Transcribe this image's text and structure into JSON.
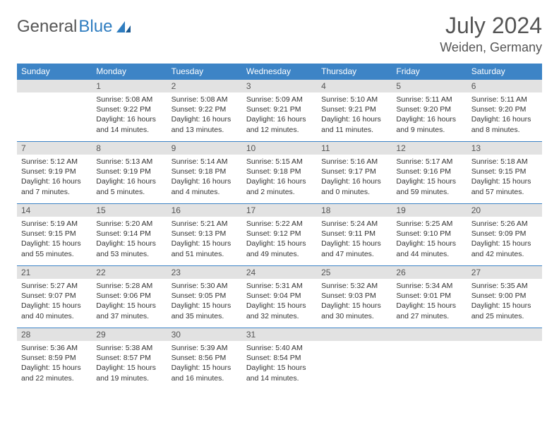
{
  "brand": {
    "part1": "General",
    "part2": "Blue"
  },
  "title": "July 2024",
  "location": "Weiden, Germany",
  "headers": [
    "Sunday",
    "Monday",
    "Tuesday",
    "Wednesday",
    "Thursday",
    "Friday",
    "Saturday"
  ],
  "colors": {
    "header_bg": "#3d84c6",
    "header_text": "#ffffff",
    "daynum_bg": "#e2e2e2",
    "row_border": "#3d84c6",
    "brand_blue": "#2f7dc0",
    "text_gray": "#555555"
  },
  "weeks": [
    [
      {
        "n": "",
        "sunrise": "",
        "sunset": "",
        "daylight": ""
      },
      {
        "n": "1",
        "sunrise": "5:08 AM",
        "sunset": "9:22 PM",
        "daylight": "16 hours and 14 minutes."
      },
      {
        "n": "2",
        "sunrise": "5:08 AM",
        "sunset": "9:22 PM",
        "daylight": "16 hours and 13 minutes."
      },
      {
        "n": "3",
        "sunrise": "5:09 AM",
        "sunset": "9:21 PM",
        "daylight": "16 hours and 12 minutes."
      },
      {
        "n": "4",
        "sunrise": "5:10 AM",
        "sunset": "9:21 PM",
        "daylight": "16 hours and 11 minutes."
      },
      {
        "n": "5",
        "sunrise": "5:11 AM",
        "sunset": "9:20 PM",
        "daylight": "16 hours and 9 minutes."
      },
      {
        "n": "6",
        "sunrise": "5:11 AM",
        "sunset": "9:20 PM",
        "daylight": "16 hours and 8 minutes."
      }
    ],
    [
      {
        "n": "7",
        "sunrise": "5:12 AM",
        "sunset": "9:19 PM",
        "daylight": "16 hours and 7 minutes."
      },
      {
        "n": "8",
        "sunrise": "5:13 AM",
        "sunset": "9:19 PM",
        "daylight": "16 hours and 5 minutes."
      },
      {
        "n": "9",
        "sunrise": "5:14 AM",
        "sunset": "9:18 PM",
        "daylight": "16 hours and 4 minutes."
      },
      {
        "n": "10",
        "sunrise": "5:15 AM",
        "sunset": "9:18 PM",
        "daylight": "16 hours and 2 minutes."
      },
      {
        "n": "11",
        "sunrise": "5:16 AM",
        "sunset": "9:17 PM",
        "daylight": "16 hours and 0 minutes."
      },
      {
        "n": "12",
        "sunrise": "5:17 AM",
        "sunset": "9:16 PM",
        "daylight": "15 hours and 59 minutes."
      },
      {
        "n": "13",
        "sunrise": "5:18 AM",
        "sunset": "9:15 PM",
        "daylight": "15 hours and 57 minutes."
      }
    ],
    [
      {
        "n": "14",
        "sunrise": "5:19 AM",
        "sunset": "9:15 PM",
        "daylight": "15 hours and 55 minutes."
      },
      {
        "n": "15",
        "sunrise": "5:20 AM",
        "sunset": "9:14 PM",
        "daylight": "15 hours and 53 minutes."
      },
      {
        "n": "16",
        "sunrise": "5:21 AM",
        "sunset": "9:13 PM",
        "daylight": "15 hours and 51 minutes."
      },
      {
        "n": "17",
        "sunrise": "5:22 AM",
        "sunset": "9:12 PM",
        "daylight": "15 hours and 49 minutes."
      },
      {
        "n": "18",
        "sunrise": "5:24 AM",
        "sunset": "9:11 PM",
        "daylight": "15 hours and 47 minutes."
      },
      {
        "n": "19",
        "sunrise": "5:25 AM",
        "sunset": "9:10 PM",
        "daylight": "15 hours and 44 minutes."
      },
      {
        "n": "20",
        "sunrise": "5:26 AM",
        "sunset": "9:09 PM",
        "daylight": "15 hours and 42 minutes."
      }
    ],
    [
      {
        "n": "21",
        "sunrise": "5:27 AM",
        "sunset": "9:07 PM",
        "daylight": "15 hours and 40 minutes."
      },
      {
        "n": "22",
        "sunrise": "5:28 AM",
        "sunset": "9:06 PM",
        "daylight": "15 hours and 37 minutes."
      },
      {
        "n": "23",
        "sunrise": "5:30 AM",
        "sunset": "9:05 PM",
        "daylight": "15 hours and 35 minutes."
      },
      {
        "n": "24",
        "sunrise": "5:31 AM",
        "sunset": "9:04 PM",
        "daylight": "15 hours and 32 minutes."
      },
      {
        "n": "25",
        "sunrise": "5:32 AM",
        "sunset": "9:03 PM",
        "daylight": "15 hours and 30 minutes."
      },
      {
        "n": "26",
        "sunrise": "5:34 AM",
        "sunset": "9:01 PM",
        "daylight": "15 hours and 27 minutes."
      },
      {
        "n": "27",
        "sunrise": "5:35 AM",
        "sunset": "9:00 PM",
        "daylight": "15 hours and 25 minutes."
      }
    ],
    [
      {
        "n": "28",
        "sunrise": "5:36 AM",
        "sunset": "8:59 PM",
        "daylight": "15 hours and 22 minutes."
      },
      {
        "n": "29",
        "sunrise": "5:38 AM",
        "sunset": "8:57 PM",
        "daylight": "15 hours and 19 minutes."
      },
      {
        "n": "30",
        "sunrise": "5:39 AM",
        "sunset": "8:56 PM",
        "daylight": "15 hours and 16 minutes."
      },
      {
        "n": "31",
        "sunrise": "5:40 AM",
        "sunset": "8:54 PM",
        "daylight": "15 hours and 14 minutes."
      },
      {
        "n": "",
        "sunrise": "",
        "sunset": "",
        "daylight": ""
      },
      {
        "n": "",
        "sunrise": "",
        "sunset": "",
        "daylight": ""
      },
      {
        "n": "",
        "sunrise": "",
        "sunset": "",
        "daylight": ""
      }
    ]
  ],
  "labels": {
    "sunrise": "Sunrise:",
    "sunset": "Sunset:",
    "daylight": "Daylight:"
  }
}
